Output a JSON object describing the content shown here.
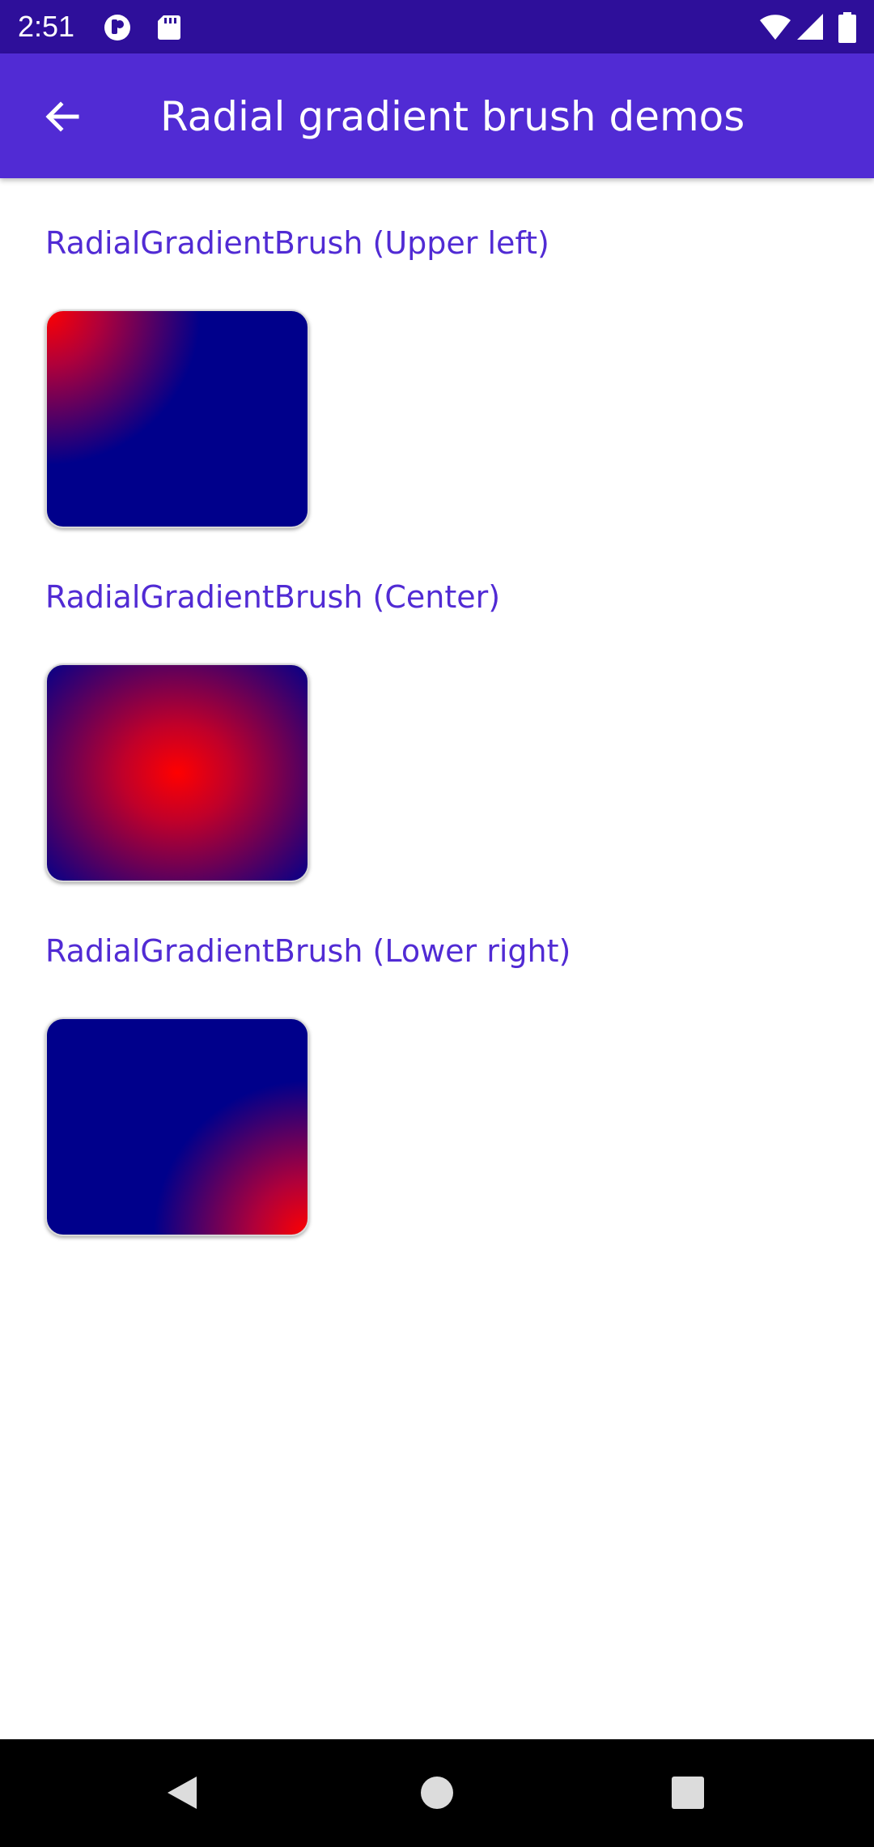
{
  "status_bar": {
    "time": "2:51",
    "icons_left": [
      "data-saver-icon",
      "sd-card-icon"
    ],
    "icons_right": [
      "wifi-icon",
      "cellular-signal-icon",
      "battery-icon"
    ]
  },
  "app_bar": {
    "title": "Radial gradient brush demos",
    "back_icon": "arrow-left-icon"
  },
  "demos": [
    {
      "label": "RadialGradientBrush (Upper left)",
      "center": "upper-left",
      "colors": [
        "#ff0000",
        "#00008b"
      ]
    },
    {
      "label": "RadialGradientBrush (Center)",
      "center": "center",
      "colors": [
        "#ff0000",
        "#00008b"
      ]
    },
    {
      "label": "RadialGradientBrush (Lower right)",
      "center": "lower-right",
      "colors": [
        "#ff0000",
        "#00008b"
      ]
    }
  ],
  "nav_bar": {
    "buttons": [
      "back-triangle-icon",
      "home-circle-icon",
      "recents-square-icon"
    ]
  },
  "colors": {
    "status_bar": "#2e0f9a",
    "app_bar": "#512bd4",
    "accent_text": "#512bd4"
  }
}
